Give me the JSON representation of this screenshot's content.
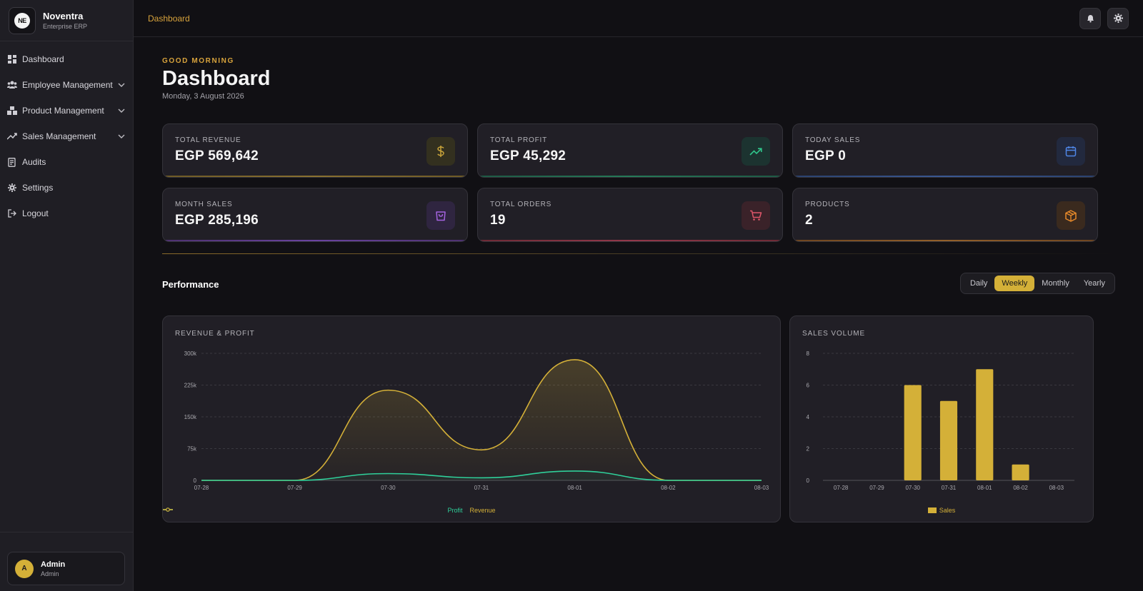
{
  "brand": {
    "name": "Noventra",
    "subtitle": "Enterprise ERP",
    "logo_text": "NE"
  },
  "sidebar": {
    "items": [
      {
        "label": "Dashboard",
        "icon": "grid-icon"
      },
      {
        "label": "Employee Management",
        "icon": "users-icon"
      },
      {
        "label": "Product Management",
        "icon": "boxes-icon"
      },
      {
        "label": "Sales Management",
        "icon": "trending-icon"
      },
      {
        "label": "Audits",
        "icon": "audit-icon"
      },
      {
        "label": "Settings",
        "icon": "gear-icon"
      },
      {
        "label": "Logout",
        "icon": "logout-icon"
      }
    ]
  },
  "user": {
    "initial": "A",
    "name": "Admin",
    "role": "Admin"
  },
  "topbar": {
    "breadcrumb": "Dashboard"
  },
  "header": {
    "greeting": "GOOD MORNING",
    "title": "Dashboard",
    "date": "Monday, 3 August 2026"
  },
  "stats": [
    {
      "label": "TOTAL REVENUE",
      "value": "EGP 569,642",
      "icon": "dollar-icon",
      "color": "#c9a43a"
    },
    {
      "label": "TOTAL PROFIT",
      "value": "EGP 45,292",
      "icon": "trending-up-icon",
      "color": "#2fc48a"
    },
    {
      "label": "TODAY SALES",
      "value": "EGP 0",
      "icon": "calendar-icon",
      "color": "#4f86e6"
    },
    {
      "label": "MONTH SALES",
      "value": "EGP 285,196",
      "icon": "shopping-bag-icon",
      "color": "#a463e0"
    },
    {
      "label": "TOTAL ORDERS",
      "value": "19",
      "icon": "cart-icon",
      "color": "#e0566a"
    },
    {
      "label": "PRODUCTS",
      "value": "2",
      "icon": "box-icon",
      "color": "#e88a2a"
    }
  ],
  "performance": {
    "title": "Performance",
    "periods": [
      "Daily",
      "Weekly",
      "Monthly",
      "Yearly"
    ],
    "active_period": "Weekly"
  },
  "colors": {
    "accent": "#d4b038",
    "profit": "#2fd09a",
    "revenue": "#d4b038"
  },
  "chart_data": [
    {
      "type": "area",
      "title": "REVENUE & PROFIT",
      "categories": [
        "07-28",
        "07-29",
        "07-30",
        "07-31",
        "08-01",
        "08-02",
        "08-03"
      ],
      "ylim": [
        0,
        300000
      ],
      "yticks": [
        0,
        75000,
        150000,
        225000,
        300000
      ],
      "ytick_labels": [
        "0",
        "75k",
        "150k",
        "225k",
        "300k"
      ],
      "series": [
        {
          "name": "Profit",
          "values": [
            0,
            0,
            16000,
            6000,
            22000,
            0,
            0
          ]
        },
        {
          "name": "Revenue",
          "values": [
            0,
            0,
            213000,
            72000,
            285000,
            0,
            0
          ]
        }
      ],
      "grid": true,
      "legend": "bottom-center"
    },
    {
      "type": "bar",
      "title": "SALES VOLUME",
      "categories": [
        "07-28",
        "07-29",
        "07-30",
        "07-31",
        "08-01",
        "08-02",
        "08-03"
      ],
      "ylim": [
        0,
        8
      ],
      "yticks": [
        0,
        2,
        4,
        6,
        8
      ],
      "series": [
        {
          "name": "Sales",
          "values": [
            0,
            0,
            6,
            5,
            7,
            1,
            0
          ]
        }
      ],
      "grid": true,
      "legend": "bottom-center"
    }
  ]
}
